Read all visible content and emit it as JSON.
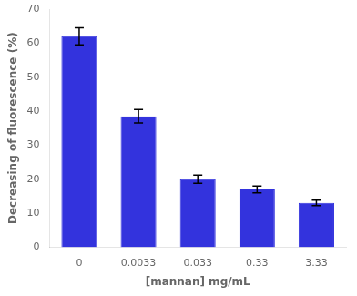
{
  "chart_data": {
    "type": "bar",
    "categories": [
      "0",
      "0.0033",
      "0.033",
      "0.33",
      "3.33"
    ],
    "values": [
      62.0,
      38.5,
      20.0,
      17.0,
      13.0
    ],
    "errors": [
      2.5,
      2.0,
      1.2,
      1.0,
      0.8
    ],
    "color": "#3333dd",
    "xlabel": "[mannan] mg/mL",
    "ylabel": "Decreasing of fluorescence (%)",
    "ylim": [
      0,
      70
    ],
    "yticks": [
      0,
      10,
      20,
      30,
      40,
      50,
      60,
      70
    ],
    "grid": false
  }
}
